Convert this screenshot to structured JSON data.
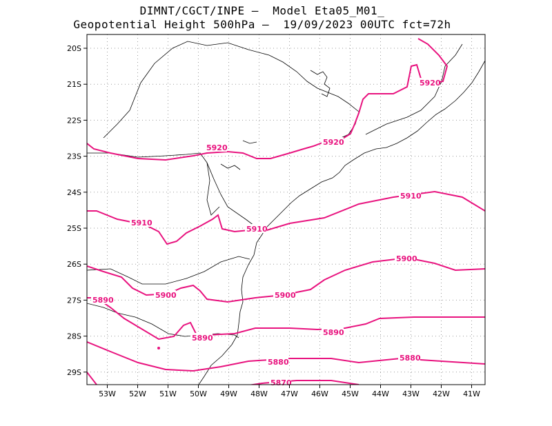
{
  "title_line1": "DIMNT/CGCT/INPE –  Model Eta05_M01_",
  "title_line2": "Geopotential Height 500hPa –  19/09/2023 00UTC fct=72h",
  "colors": {
    "contour": "#e8127e",
    "coast": "#000000",
    "grid": "#999999",
    "frame": "#000000"
  },
  "x_axis": {
    "ticks": [
      "53W",
      "52W",
      "51W",
      "50W",
      "49W",
      "48W",
      "47W",
      "46W",
      "45W",
      "44W",
      "43W",
      "42W",
      "41W"
    ]
  },
  "y_axis": {
    "ticks": [
      "20S",
      "21S",
      "22S",
      "23S",
      "24S",
      "25S",
      "26S",
      "27S",
      "28S",
      "29S"
    ]
  },
  "contour_labels": [
    {
      "label": "5920"
    },
    {
      "label": "5920"
    },
    {
      "label": "5920"
    },
    {
      "label": "5910"
    },
    {
      "label": "5910"
    },
    {
      "label": "5910"
    },
    {
      "label": "5900"
    },
    {
      "label": "5900"
    },
    {
      "label": "5900"
    },
    {
      "label": "5890"
    },
    {
      "label": "5890"
    },
    {
      "label": "5890"
    },
    {
      "label": "5880"
    },
    {
      "label": "5880"
    },
    {
      "label": "5870"
    }
  ]
}
